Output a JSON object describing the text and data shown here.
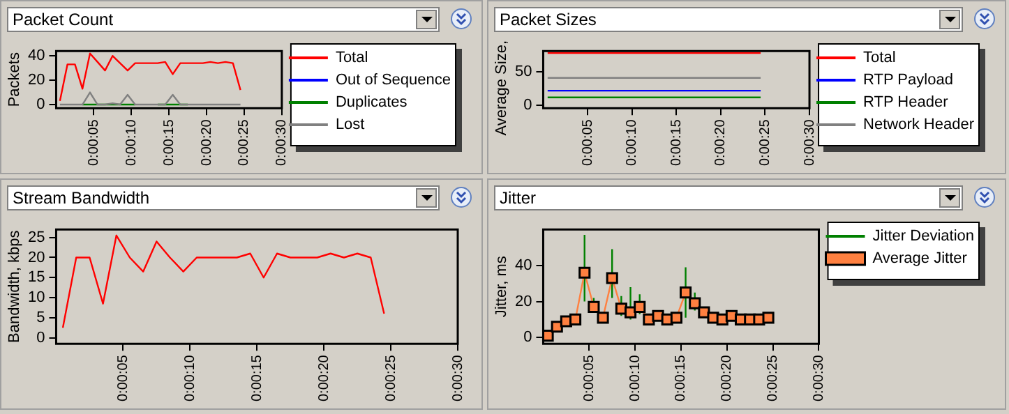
{
  "chart_data": [
    {
      "type": "line",
      "title": "Packet Count",
      "ylabel": "Packets",
      "legend": "right",
      "grid": false,
      "marker": "none",
      "xlim": [
        0,
        30
      ],
      "xticks": [
        {
          "value": 5,
          "label": "0:00:05"
        },
        {
          "value": 10,
          "label": "0:00:10"
        },
        {
          "value": 15,
          "label": "0:00:15"
        },
        {
          "value": 20,
          "label": "0:00:20"
        },
        {
          "value": 25,
          "label": "0:00:25"
        },
        {
          "value": 30,
          "label": "0:00:30"
        }
      ],
      "ylim": [
        -3,
        44
      ],
      "yticks": [
        0,
        20,
        40
      ],
      "x": [
        0.5,
        1.5,
        2.5,
        3.5,
        4.5,
        5.5,
        6.5,
        7.5,
        8.5,
        9.5,
        10.5,
        11.5,
        12.5,
        13.5,
        14.5,
        15.5,
        16.5,
        17.5,
        18.5,
        19.5,
        20.5,
        21.5,
        22.5,
        23.5,
        24.5
      ],
      "series": [
        {
          "name": "Total",
          "color": "#ff0000",
          "values": [
            3,
            33,
            33,
            13,
            42,
            35,
            28,
            40,
            34,
            28,
            34,
            34,
            34,
            34,
            35,
            25,
            34,
            34,
            34,
            34,
            35,
            34,
            35,
            34,
            12
          ]
        },
        {
          "name": "Out of Sequence",
          "color": "#0000ff",
          "values": [
            null,
            null,
            null,
            null,
            null,
            null,
            null,
            null,
            null,
            null,
            null,
            null,
            null,
            null,
            null,
            null,
            null,
            null,
            null,
            null,
            null,
            null,
            null,
            null,
            null
          ]
        },
        {
          "name": "Duplicates",
          "color": "#008000",
          "values": [
            null,
            null,
            null,
            0,
            0,
            0,
            0,
            0,
            0,
            0,
            0,
            null,
            null,
            0,
            0,
            0,
            0,
            0,
            null,
            null,
            null,
            null,
            null,
            null,
            null
          ]
        },
        {
          "name": "Lost",
          "color": "#808080",
          "values": [
            0,
            0,
            0,
            0,
            10,
            0,
            0,
            1,
            0,
            8,
            0,
            0,
            0,
            0,
            0,
            8,
            0,
            0,
            0,
            0,
            0,
            0,
            0,
            0,
            0
          ]
        }
      ]
    },
    {
      "type": "line",
      "title": "Packet Sizes",
      "ylabel": "Average Size,",
      "legend": "right",
      "grid": false,
      "marker": "none",
      "xlim": [
        0,
        30
      ],
      "xticks": [
        {
          "value": 5,
          "label": "0:00:05"
        },
        {
          "value": 10,
          "label": "0:00:10"
        },
        {
          "value": 15,
          "label": "0:00:15"
        },
        {
          "value": 20,
          "label": "0:00:20"
        },
        {
          "value": 25,
          "label": "0:00:25"
        },
        {
          "value": 30,
          "label": "0:00:30"
        }
      ],
      "ylim": [
        -4,
        81
      ],
      "yticks": [
        0,
        50
      ],
      "x": [
        0.5,
        24.5
      ],
      "series": [
        {
          "name": "Total",
          "color": "#ff0000",
          "values": [
            78,
            78
          ]
        },
        {
          "name": "RTP Payload",
          "color": "#0000ff",
          "values": [
            22,
            22
          ]
        },
        {
          "name": "RTP Header",
          "color": "#008000",
          "values": [
            12,
            12
          ]
        },
        {
          "name": "Network Header",
          "color": "#808080",
          "values": [
            41,
            41
          ]
        }
      ]
    },
    {
      "type": "line",
      "title": "Stream Bandwidth",
      "ylabel": "Bandwidth, kbps",
      "grid": false,
      "marker": "none",
      "xlim": [
        0,
        30
      ],
      "xticks": [
        {
          "value": 5,
          "label": "0:00:05"
        },
        {
          "value": 10,
          "label": "0:00:10"
        },
        {
          "value": 15,
          "label": "0:00:15"
        },
        {
          "value": 20,
          "label": "0:00:20"
        },
        {
          "value": 25,
          "label": "0:00:25"
        },
        {
          "value": 30,
          "label": "0:00:30"
        }
      ],
      "ylim": [
        -1.5,
        27
      ],
      "yticks": [
        0,
        5,
        10,
        15,
        20,
        25
      ],
      "x": [
        0.5,
        1.5,
        2.5,
        3.5,
        4.5,
        5.5,
        6.5,
        7.5,
        8.5,
        9.5,
        10.5,
        11.5,
        12.5,
        13.5,
        14.5,
        15.5,
        16.5,
        17.5,
        18.5,
        19.5,
        20.5,
        21.5,
        22.5,
        23.5,
        24.5
      ],
      "series": [
        {
          "color": "#ff0000",
          "values": [
            2.5,
            20,
            20,
            8.5,
            25.5,
            20,
            16.5,
            24,
            20,
            16.5,
            20,
            20,
            20,
            20,
            21,
            15,
            21,
            20,
            20,
            20,
            21,
            20,
            21,
            20,
            6
          ]
        }
      ]
    },
    {
      "type": "line",
      "title": "Jitter",
      "ylabel": "Jitter, ms",
      "legend": "right",
      "grid": false,
      "xlim": [
        0,
        30
      ],
      "xticks": [
        {
          "value": 5,
          "label": "0:00:05"
        },
        {
          "value": 10,
          "label": "0:00:10"
        },
        {
          "value": 15,
          "label": "0:00:15"
        },
        {
          "value": 20,
          "label": "0:00:20"
        },
        {
          "value": 25,
          "label": "0:00:25"
        },
        {
          "value": 30,
          "label": "0:00:30"
        }
      ],
      "ylim": [
        -3.5,
        60
      ],
      "yticks": [
        0,
        20,
        40
      ],
      "x": [
        0.5,
        1.5,
        2.5,
        3.5,
        4.5,
        5.5,
        6.5,
        7.5,
        8.5,
        9.5,
        10.5,
        11.5,
        12.5,
        13.5,
        14.5,
        15.5,
        16.5,
        17.5,
        18.5,
        19.5,
        20.5,
        21.5,
        22.5,
        23.5,
        24.5
      ],
      "series": [
        {
          "name": "Jitter Deviation",
          "color": "#008000",
          "marker": "none",
          "x": [
            4.5,
            4.5,
            null,
            5.5,
            5.5,
            null,
            7.5,
            7.5,
            null,
            8.5,
            8.5,
            null,
            9.5,
            9.5,
            null,
            10.5,
            10.5,
            null,
            15.5,
            15.5,
            null,
            16.5,
            16.5
          ],
          "values": [
            20,
            57,
            null,
            14,
            22,
            null,
            22,
            49,
            null,
            12,
            23,
            null,
            10,
            28,
            null,
            13,
            24,
            null,
            11,
            39,
            null,
            15,
            25
          ]
        },
        {
          "name": "Average Jitter",
          "color": "#ff8040",
          "marker": "square",
          "values": [
            1,
            6,
            9,
            10,
            36,
            17,
            11,
            33,
            16,
            14,
            17,
            10,
            12,
            10,
            11,
            25,
            19,
            14,
            11,
            10,
            12,
            10,
            10,
            10,
            11
          ]
        }
      ]
    }
  ]
}
